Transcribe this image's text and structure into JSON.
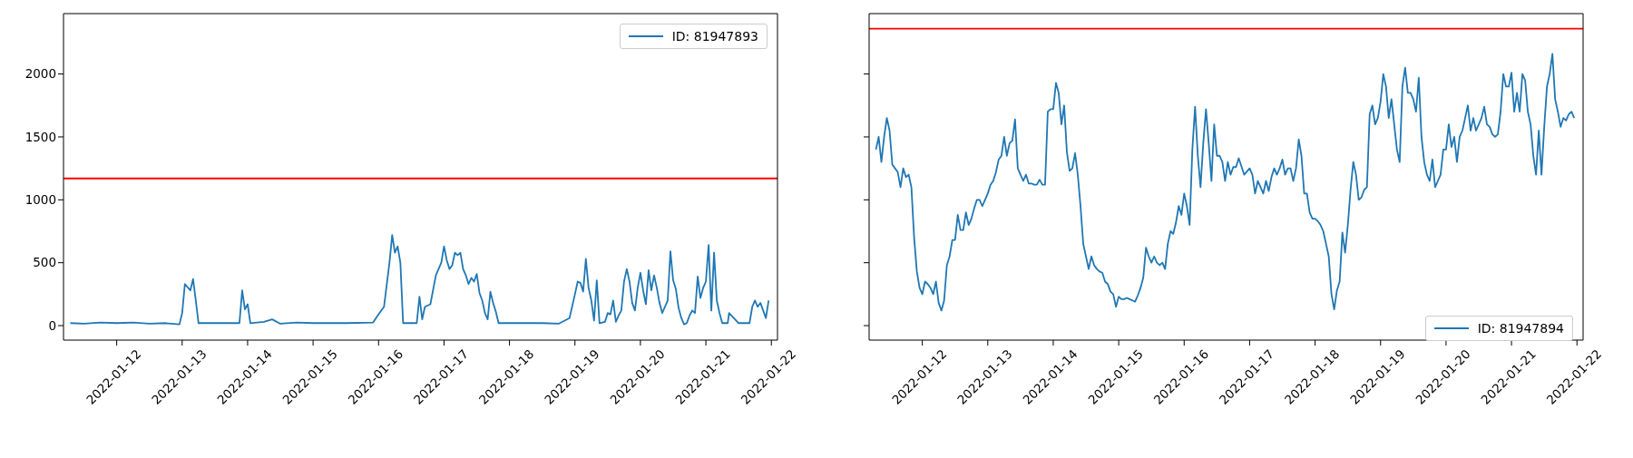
{
  "chart_data": [
    {
      "type": "line",
      "xlim": [
        "2022-01-11T04:30",
        "2022-01-22T02:15"
      ],
      "ylim": [
        -115,
        2480
      ],
      "yticks": [
        0,
        500,
        1000,
        1500,
        2000
      ],
      "xticks": [
        "2022-01-12",
        "2022-01-13",
        "2022-01-14",
        "2022-01-15",
        "2022-01-16",
        "2022-01-17",
        "2022-01-18",
        "2022-01-19",
        "2022-01-20",
        "2022-01-21",
        "2022-01-22"
      ],
      "legend": "top right",
      "ref_lines": [
        {
          "axis": "y",
          "value": 1170,
          "color": "#ff0000"
        }
      ],
      "series": [
        {
          "name": "ID: 81947893",
          "color": "#1f77b4",
          "x": [
            "2022-01-11T07:00",
            "2022-01-11T12:00",
            "2022-01-11T18:00",
            "2022-01-12T00:00",
            "2022-01-12T06:00",
            "2022-01-12T12:00",
            "2022-01-12T18:00",
            "2022-01-12T23:00",
            "2022-01-13T00:00",
            "2022-01-13T01:00",
            "2022-01-13T03:00",
            "2022-01-13T04:00",
            "2022-01-13T05:00",
            "2022-01-13T06:00",
            "2022-01-13T12:00",
            "2022-01-13T21:00",
            "2022-01-13T22:00",
            "2022-01-13T23:00",
            "2022-01-14T00:00",
            "2022-01-14T01:00",
            "2022-01-14T06:00",
            "2022-01-14T09:00",
            "2022-01-14T12:00",
            "2022-01-14T18:00",
            "2022-01-15T00:00",
            "2022-01-15T12:00",
            "2022-01-15T22:00",
            "2022-01-16T00:00",
            "2022-01-16T02:00",
            "2022-01-16T04:00",
            "2022-01-16T05:00",
            "2022-01-16T06:00",
            "2022-01-16T07:00",
            "2022-01-16T08:00",
            "2022-01-16T09:00",
            "2022-01-16T12:00",
            "2022-01-16T14:00",
            "2022-01-16T15:00",
            "2022-01-16T16:00",
            "2022-01-16T17:00",
            "2022-01-16T19:00",
            "2022-01-16T21:00",
            "2022-01-16T23:00",
            "2022-01-17T00:00",
            "2022-01-17T01:00",
            "2022-01-17T02:00",
            "2022-01-17T03:00",
            "2022-01-17T04:00",
            "2022-01-17T05:00",
            "2022-01-17T06:00",
            "2022-01-17T07:00",
            "2022-01-17T08:00",
            "2022-01-17T09:00",
            "2022-01-17T10:00",
            "2022-01-17T11:00",
            "2022-01-17T12:00",
            "2022-01-17T13:00",
            "2022-01-17T14:00",
            "2022-01-17T15:00",
            "2022-01-17T16:00",
            "2022-01-17T17:00",
            "2022-01-17T18:00",
            "2022-01-17T19:00",
            "2022-01-17T20:00",
            "2022-01-18T00:00",
            "2022-01-18T06:00",
            "2022-01-18T12:00",
            "2022-01-18T18:00",
            "2022-01-18T22:00",
            "2022-01-19T00:00",
            "2022-01-19T01:00",
            "2022-01-19T02:00",
            "2022-01-19T03:00",
            "2022-01-19T04:00",
            "2022-01-19T05:00",
            "2022-01-19T06:00",
            "2022-01-19T07:00",
            "2022-01-19T08:00",
            "2022-01-19T09:00",
            "2022-01-19T11:00",
            "2022-01-19T12:00",
            "2022-01-19T13:00",
            "2022-01-19T14:00",
            "2022-01-19T15:00",
            "2022-01-19T16:00",
            "2022-01-19T17:00",
            "2022-01-19T18:00",
            "2022-01-19T19:00",
            "2022-01-19T20:00",
            "2022-01-19T21:00",
            "2022-01-19T22:00",
            "2022-01-19T23:00",
            "2022-01-20T00:00",
            "2022-01-20T01:00",
            "2022-01-20T02:00",
            "2022-01-20T03:00",
            "2022-01-20T04:00",
            "2022-01-20T05:00",
            "2022-01-20T06:00",
            "2022-01-20T07:00",
            "2022-01-20T08:00",
            "2022-01-20T09:00",
            "2022-01-20T10:00",
            "2022-01-20T11:00",
            "2022-01-20T12:00",
            "2022-01-20T13:00",
            "2022-01-20T14:00",
            "2022-01-20T15:00",
            "2022-01-20T16:00",
            "2022-01-20T17:00",
            "2022-01-20T18:00",
            "2022-01-20T19:00",
            "2022-01-20T20:00",
            "2022-01-20T21:00",
            "2022-01-20T22:00",
            "2022-01-20T23:00",
            "2022-01-21T00:00",
            "2022-01-21T01:00",
            "2022-01-21T02:00",
            "2022-01-21T03:00",
            "2022-01-21T04:00",
            "2022-01-21T05:00",
            "2022-01-21T06:00",
            "2022-01-21T08:00",
            "2022-01-21T08:30",
            "2022-01-21T12:00",
            "2022-01-21T16:00",
            "2022-01-21T17:00",
            "2022-01-21T18:00",
            "2022-01-21T19:00",
            "2022-01-21T20:00",
            "2022-01-21T21:00",
            "2022-01-21T22:00",
            "2022-01-21T23:00"
          ],
          "values": [
            20,
            15,
            25,
            20,
            25,
            15,
            20,
            10,
            100,
            330,
            280,
            370,
            200,
            20,
            20,
            20,
            280,
            130,
            170,
            20,
            30,
            50,
            15,
            25,
            20,
            20,
            25,
            90,
            150,
            500,
            720,
            580,
            630,
            500,
            20,
            20,
            20,
            230,
            50,
            150,
            170,
            400,
            500,
            630,
            520,
            450,
            480,
            580,
            560,
            580,
            450,
            400,
            330,
            380,
            350,
            410,
            260,
            200,
            100,
            50,
            270,
            180,
            110,
            20,
            20,
            20,
            20,
            15,
            60,
            250,
            350,
            340,
            270,
            530,
            300,
            200,
            40,
            360,
            20,
            30,
            100,
            90,
            200,
            30,
            80,
            120,
            350,
            450,
            350,
            180,
            120,
            300,
            420,
            280,
            170,
            440,
            280,
            400,
            300,
            180,
            100,
            150,
            200,
            590,
            360,
            290,
            140,
            60,
            10,
            20,
            80,
            120,
            100,
            390,
            220,
            300,
            350,
            640,
            120,
            580,
            200,
            100,
            20,
            20,
            100,
            20,
            20,
            150,
            200,
            150,
            180,
            120,
            60,
            200
          ]
        }
      ]
    },
    {
      "type": "line",
      "xlim": [
        "2022-01-11T04:30",
        "2022-01-22T02:15"
      ],
      "ylim": [
        -115,
        2480
      ],
      "yticks": [
        0,
        500,
        1000,
        1500,
        2000
      ],
      "xticks": [
        "2022-01-12",
        "2022-01-13",
        "2022-01-14",
        "2022-01-15",
        "2022-01-16",
        "2022-01-17",
        "2022-01-18",
        "2022-01-19",
        "2022-01-20",
        "2022-01-21",
        "2022-01-22"
      ],
      "legend": "bottom right",
      "tick_labels": "x",
      "ref_lines": [
        {
          "axis": "y",
          "value": 2360,
          "color": "#ff0000"
        }
      ],
      "series": [
        {
          "name": "ID: 81947894",
          "color": "#1f77b4",
          "x": [
            "2022-01-11T07:00",
            "2022-01-11T08:00",
            "2022-01-11T09:00",
            "2022-01-11T10:00",
            "2022-01-11T11:00",
            "2022-01-11T12:00",
            "2022-01-11T13:00",
            "2022-01-11T14:00",
            "2022-01-11T15:00",
            "2022-01-11T16:00",
            "2022-01-11T17:00",
            "2022-01-11T18:00",
            "2022-01-11T19:00",
            "2022-01-11T20:00",
            "2022-01-11T21:00",
            "2022-01-11T22:00",
            "2022-01-11T23:00",
            "2022-01-12T00:00",
            "2022-01-12T01:00",
            "2022-01-12T02:00",
            "2022-01-12T03:00",
            "2022-01-12T04:00",
            "2022-01-12T05:00",
            "2022-01-12T06:00",
            "2022-01-12T07:00",
            "2022-01-12T08:00",
            "2022-01-12T09:00",
            "2022-01-12T10:00",
            "2022-01-12T11:00",
            "2022-01-12T12:00",
            "2022-01-12T13:00",
            "2022-01-12T14:00",
            "2022-01-12T15:00",
            "2022-01-12T16:00",
            "2022-01-12T17:00",
            "2022-01-12T18:00",
            "2022-01-12T19:00",
            "2022-01-12T20:00",
            "2022-01-12T21:00",
            "2022-01-12T22:00",
            "2022-01-12T23:00",
            "2022-01-13T00:00",
            "2022-01-13T01:00",
            "2022-01-13T02:00",
            "2022-01-13T03:00",
            "2022-01-13T04:00",
            "2022-01-13T05:00",
            "2022-01-13T06:00",
            "2022-01-13T07:00",
            "2022-01-13T08:00",
            "2022-01-13T09:00",
            "2022-01-13T10:00",
            "2022-01-13T11:00",
            "2022-01-13T12:00",
            "2022-01-13T13:00",
            "2022-01-13T14:00",
            "2022-01-13T15:00",
            "2022-01-13T16:00",
            "2022-01-13T17:00",
            "2022-01-13T18:00",
            "2022-01-13T19:00",
            "2022-01-13T20:00",
            "2022-01-13T21:00",
            "2022-01-13T22:00",
            "2022-01-13T23:00",
            "2022-01-14T00:00",
            "2022-01-14T01:00",
            "2022-01-14T02:00",
            "2022-01-14T03:00",
            "2022-01-14T04:00",
            "2022-01-14T05:00",
            "2022-01-14T06:00",
            "2022-01-14T07:00",
            "2022-01-14T08:00",
            "2022-01-14T09:00",
            "2022-01-14T10:00",
            "2022-01-14T11:00",
            "2022-01-14T12:00",
            "2022-01-14T13:00",
            "2022-01-14T14:00",
            "2022-01-14T15:00",
            "2022-01-14T16:00",
            "2022-01-14T17:00",
            "2022-01-14T18:00",
            "2022-01-14T19:00",
            "2022-01-14T20:00",
            "2022-01-14T21:00",
            "2022-01-14T22:00",
            "2022-01-14T23:00",
            "2022-01-15T00:00",
            "2022-01-15T01:00",
            "2022-01-15T02:00",
            "2022-01-15T03:00",
            "2022-01-15T04:00",
            "2022-01-15T05:00",
            "2022-01-15T06:00",
            "2022-01-15T07:00",
            "2022-01-15T08:00",
            "2022-01-15T09:00",
            "2022-01-15T10:00",
            "2022-01-15T11:00",
            "2022-01-15T12:00",
            "2022-01-15T13:00",
            "2022-01-15T14:00",
            "2022-01-15T15:00",
            "2022-01-15T16:00",
            "2022-01-15T17:00",
            "2022-01-15T18:00",
            "2022-01-15T19:00",
            "2022-01-15T20:00",
            "2022-01-15T21:00",
            "2022-01-15T22:00",
            "2022-01-15T23:00",
            "2022-01-16T00:00",
            "2022-01-16T01:00",
            "2022-01-16T02:00",
            "2022-01-16T03:00",
            "2022-01-16T04:00",
            "2022-01-16T05:00",
            "2022-01-16T06:00",
            "2022-01-16T07:00",
            "2022-01-16T08:00",
            "2022-01-16T09:00",
            "2022-01-16T10:00",
            "2022-01-16T11:00",
            "2022-01-16T12:00",
            "2022-01-16T13:00",
            "2022-01-16T14:00",
            "2022-01-16T15:00",
            "2022-01-16T16:00",
            "2022-01-16T17:00",
            "2022-01-16T18:00",
            "2022-01-16T19:00",
            "2022-01-16T20:00",
            "2022-01-16T22:00",
            "2022-01-17T00:00",
            "2022-01-17T01:00",
            "2022-01-17T02:00",
            "2022-01-17T03:00",
            "2022-01-17T04:00",
            "2022-01-17T05:00",
            "2022-01-17T06:00",
            "2022-01-17T07:00",
            "2022-01-17T08:00",
            "2022-01-17T09:00",
            "2022-01-17T10:00",
            "2022-01-17T11:00",
            "2022-01-17T12:00",
            "2022-01-17T13:00",
            "2022-01-17T14:00",
            "2022-01-17T15:00",
            "2022-01-17T16:00",
            "2022-01-17T17:00",
            "2022-01-17T18:00",
            "2022-01-17T19:00",
            "2022-01-17T20:00",
            "2022-01-17T21:00",
            "2022-01-17T22:00",
            "2022-01-17T23:00",
            "2022-01-18T00:00",
            "2022-01-18T01:00",
            "2022-01-18T02:00",
            "2022-01-18T03:00",
            "2022-01-18T04:00",
            "2022-01-18T05:00",
            "2022-01-18T06:00",
            "2022-01-18T07:00",
            "2022-01-18T08:00",
            "2022-01-18T09:00",
            "2022-01-18T10:00",
            "2022-01-18T11:00",
            "2022-01-18T12:00",
            "2022-01-18T13:00",
            "2022-01-18T14:00",
            "2022-01-18T15:00",
            "2022-01-18T16:00",
            "2022-01-18T17:00",
            "2022-01-18T18:00",
            "2022-01-18T19:00",
            "2022-01-18T20:00",
            "2022-01-18T21:00",
            "2022-01-18T22:00",
            "2022-01-18T23:00",
            "2022-01-19T00:00",
            "2022-01-19T01:00",
            "2022-01-19T02:00",
            "2022-01-19T03:00",
            "2022-01-19T04:00",
            "2022-01-19T05:00",
            "2022-01-19T06:00",
            "2022-01-19T07:00",
            "2022-01-19T08:00",
            "2022-01-19T09:00",
            "2022-01-19T10:00",
            "2022-01-19T11:00",
            "2022-01-19T12:00",
            "2022-01-19T13:00",
            "2022-01-19T14:00",
            "2022-01-19T15:00",
            "2022-01-19T16:00",
            "2022-01-19T17:00",
            "2022-01-19T18:00",
            "2022-01-19T19:00",
            "2022-01-19T20:00",
            "2022-01-19T21:00",
            "2022-01-19T22:00",
            "2022-01-19T23:00",
            "2022-01-20T00:00",
            "2022-01-20T01:00",
            "2022-01-20T02:00",
            "2022-01-20T03:00",
            "2022-01-20T04:00",
            "2022-01-20T05:00",
            "2022-01-20T06:00",
            "2022-01-20T07:00",
            "2022-01-20T08:00",
            "2022-01-20T09:00",
            "2022-01-20T10:00",
            "2022-01-20T11:00",
            "2022-01-20T12:00",
            "2022-01-20T13:00",
            "2022-01-20T14:00",
            "2022-01-20T15:00",
            "2022-01-20T16:00",
            "2022-01-20T17:00",
            "2022-01-20T18:00",
            "2022-01-20T19:00",
            "2022-01-20T20:00",
            "2022-01-20T21:00",
            "2022-01-20T22:00",
            "2022-01-20T23:00",
            "2022-01-21T00:00",
            "2022-01-21T01:00",
            "2022-01-21T02:00",
            "2022-01-21T03:00",
            "2022-01-21T04:00",
            "2022-01-21T05:00",
            "2022-01-21T06:00",
            "2022-01-21T07:00",
            "2022-01-21T08:00",
            "2022-01-21T09:00",
            "2022-01-21T10:00",
            "2022-01-21T11:00",
            "2022-01-21T12:00",
            "2022-01-21T13:00",
            "2022-01-21T14:00",
            "2022-01-21T15:00",
            "2022-01-21T16:00",
            "2022-01-21T17:00",
            "2022-01-21T18:00",
            "2022-01-21T19:00",
            "2022-01-21T20:00",
            "2022-01-21T21:00",
            "2022-01-21T22:00",
            "2022-01-21T23:00"
          ],
          "values": [
            1400,
            1500,
            1300,
            1500,
            1650,
            1550,
            1280,
            1250,
            1220,
            1100,
            1250,
            1180,
            1200,
            1100,
            700,
            430,
            300,
            250,
            350,
            330,
            300,
            250,
            350,
            180,
            120,
            200,
            480,
            550,
            680,
            680,
            880,
            760,
            760,
            900,
            800,
            850,
            930,
            1000,
            1000,
            950,
            1000,
            1050,
            1120,
            1150,
            1220,
            1320,
            1350,
            1500,
            1350,
            1450,
            1470,
            1640,
            1250,
            1200,
            1150,
            1200,
            1130,
            1130,
            1120,
            1120,
            1160,
            1120,
            1120,
            1700,
            1720,
            1720,
            1930,
            1850,
            1600,
            1750,
            1380,
            1230,
            1250,
            1370,
            1200,
            950,
            650,
            550,
            450,
            550,
            480,
            450,
            430,
            420,
            350,
            330,
            270,
            250,
            150,
            230,
            210,
            210,
            220,
            210,
            200,
            190,
            240,
            300,
            380,
            620,
            550,
            500,
            550,
            500,
            480,
            500,
            450,
            650,
            750,
            730,
            820,
            950,
            880,
            1050,
            950,
            800,
            1400,
            1740,
            1350,
            1100,
            1450,
            1720,
            1450,
            1150,
            1600,
            1350,
            1350,
            1300,
            1150,
            1300,
            1200,
            1260,
            1260,
            1330,
            1200,
            1250,
            1200,
            1050,
            1150,
            1100,
            1050,
            1150,
            1070,
            1180,
            1250,
            1200,
            1250,
            1320,
            1200,
            1250,
            1250,
            1150,
            1250,
            1480,
            1350,
            1050,
            1050,
            900,
            850,
            850,
            830,
            800,
            750,
            650,
            550,
            250,
            130,
            280,
            350,
            740,
            580,
            800,
            1080,
            1300,
            1200,
            1000,
            1020,
            1080,
            1100,
            1680,
            1750,
            1600,
            1650,
            1780,
            2000,
            1900,
            1650,
            1800,
            1600,
            1400,
            1300,
            1900,
            2050,
            1850,
            1850,
            1800,
            1700,
            1970,
            1500,
            1300,
            1200,
            1150,
            1320,
            1100,
            1150,
            1200,
            1400,
            1400,
            1600,
            1420,
            1500,
            1300,
            1500,
            1550,
            1650,
            1750,
            1550,
            1650,
            1550,
            1600,
            1650,
            1740,
            1600,
            1580,
            1520,
            1500,
            1520,
            1700,
            2000,
            1900,
            1900,
            2010,
            1700,
            1850,
            1700,
            2000,
            1950,
            1700,
            1600,
            1350,
            1200,
            1550,
            1200,
            1580,
            1900,
            2000,
            2160,
            1800,
            1700,
            1580,
            1650,
            1630,
            1680,
            1700,
            1650
          ]
        }
      ]
    }
  ]
}
